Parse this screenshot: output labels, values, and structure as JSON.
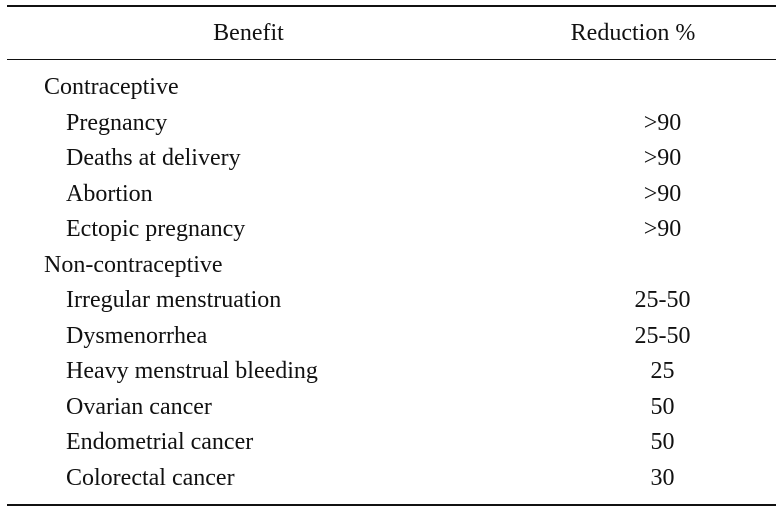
{
  "table": {
    "headers": {
      "benefit": "Benefit",
      "reduction": "Reduction %"
    },
    "sections": [
      {
        "title": "Contraceptive",
        "rows": [
          {
            "benefit": "Pregnancy",
            "reduction": ">90"
          },
          {
            "benefit": "Deaths at delivery",
            "reduction": ">90"
          },
          {
            "benefit": "Abortion",
            "reduction": ">90"
          },
          {
            "benefit": "Ectopic pregnancy",
            "reduction": ">90"
          }
        ]
      },
      {
        "title": "Non-contraceptive",
        "rows": [
          {
            "benefit": "Irregular menstruation",
            "reduction": "25-50"
          },
          {
            "benefit": "Dysmenorrhea",
            "reduction": "25-50"
          },
          {
            "benefit": "Heavy menstrual bleeding",
            "reduction": "25"
          },
          {
            "benefit": "Ovarian cancer",
            "reduction": "50"
          },
          {
            "benefit": "Endometrial cancer",
            "reduction": "50"
          },
          {
            "benefit": "Colorectal cancer",
            "reduction": "30"
          }
        ]
      }
    ]
  }
}
